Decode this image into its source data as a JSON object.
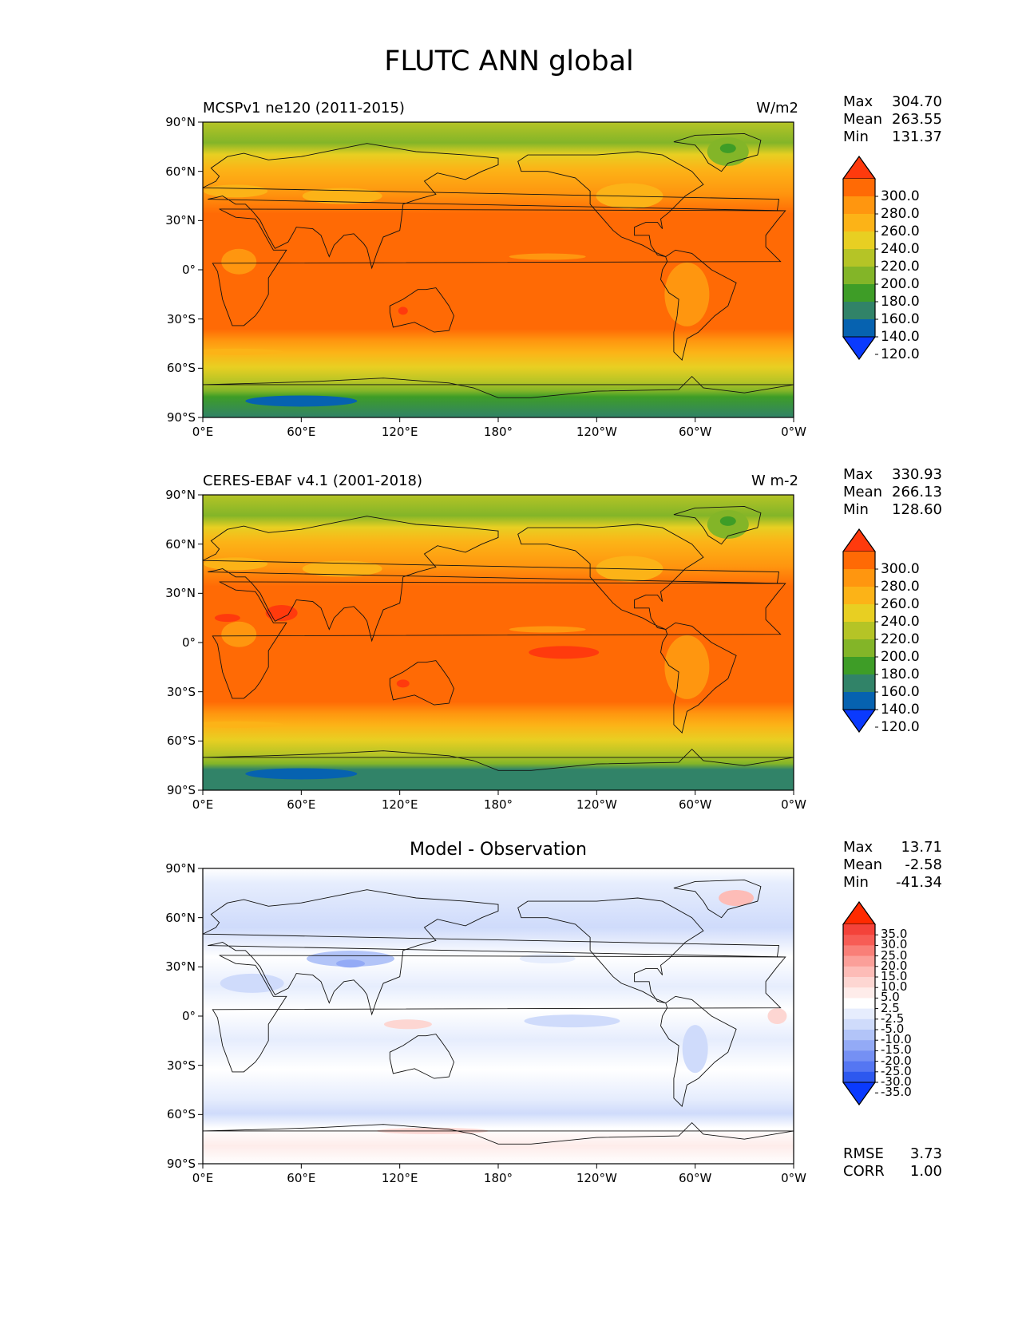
{
  "figure": {
    "title": "FLUTC ANN global",
    "lat_ticks": [
      "90°N",
      "60°N",
      "30°N",
      "0°",
      "30°S",
      "60°S",
      "90°S"
    ],
    "lon_ticks": [
      "0°E",
      "60°E",
      "120°E",
      "180°",
      "120°W",
      "60°W",
      "0°W"
    ],
    "stat_labels": {
      "max": "Max",
      "mean": "Mean",
      "min": "Min",
      "rmse": "RMSE",
      "corr": "CORR"
    }
  },
  "panels": [
    {
      "title": "MCSPv1 ne120 (2011-2015)",
      "units": "W/m2",
      "stats": {
        "max": "304.70",
        "mean": "263.55",
        "min": "131.37"
      },
      "colorbar": {
        "labels": [
          "300.0",
          "280.0",
          "260.0",
          "240.0",
          "220.0",
          "200.0",
          "180.0",
          "160.0",
          "140.0",
          "120.0"
        ],
        "colors": [
          "#ff3a0d",
          "#ff6a05",
          "#ff960f",
          "#fcb317",
          "#e8cf22",
          "#b5c426",
          "#83b528",
          "#3e9d27",
          "#318368",
          "#0662b0",
          "#0a3afe"
        ]
      }
    },
    {
      "title": "CERES-EBAF v4.1 (2001-2018)",
      "units": "W m-2",
      "stats": {
        "max": "330.93",
        "mean": "266.13",
        "min": "128.60"
      },
      "colorbar": {
        "labels": [
          "300.0",
          "280.0",
          "260.0",
          "240.0",
          "220.0",
          "200.0",
          "180.0",
          "160.0",
          "140.0",
          "120.0"
        ],
        "colors": [
          "#ff3a0d",
          "#ff6a05",
          "#ff960f",
          "#fcb317",
          "#e8cf22",
          "#b5c426",
          "#83b528",
          "#3e9d27",
          "#318368",
          "#0662b0",
          "#0a3afe"
        ]
      }
    },
    {
      "title": "Model - Observation",
      "stats": {
        "max": "13.71",
        "mean": "-2.58",
        "min": "-41.34",
        "rmse": "3.73",
        "corr": "1.00"
      },
      "colorbar": {
        "labels": [
          "35.0",
          "30.0",
          "25.0",
          "20.0",
          "15.0",
          "10.0",
          "5.0",
          "2.5",
          "-2.5",
          "-5.0",
          "-10.0",
          "-15.0",
          "-20.0",
          "-25.0",
          "-30.0",
          "-35.0"
        ],
        "colors": [
          "#ff2a00",
          "#f4423a",
          "#f75c55",
          "#f97f78",
          "#fb9f99",
          "#fdbcb7",
          "#fdd6d2",
          "#feecea",
          "#ffffff",
          "#e6edfd",
          "#cfdbfb",
          "#b2c4f8",
          "#93aaf6",
          "#7590f4",
          "#5576f2",
          "#2d58ef",
          "#0a3afe"
        ]
      }
    }
  ]
}
